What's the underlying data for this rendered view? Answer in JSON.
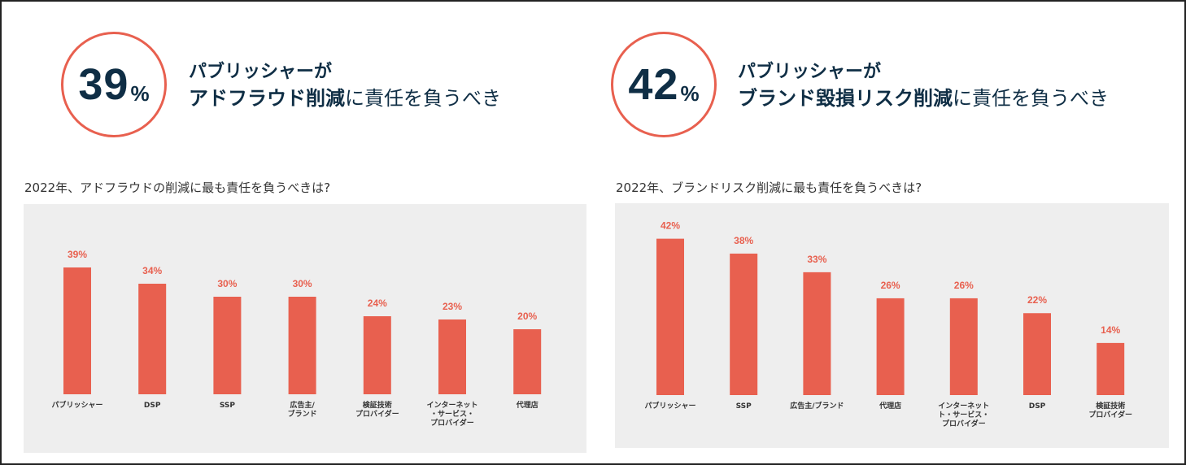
{
  "left": {
    "stat_number": "39",
    "stat_unit": "%",
    "headline_line1": "パブリッシャーが",
    "headline_bold": "アドフラウド削減",
    "headline_rest": "に責任を負うべき"
  },
  "right": {
    "stat_number": "42",
    "stat_unit": "%",
    "headline_line1": "パブリッシャーが",
    "headline_bold": "ブランド毀損リスク削減",
    "headline_rest": "に責任を負うべき"
  },
  "colors": {
    "accent": "#e8604f",
    "navy": "#0f2e45",
    "panel_bg": "#eeeeee"
  },
  "chart_data": [
    {
      "type": "bar",
      "title": "2022年、アドフラウドの削減に最も責任を負うべきは?",
      "categories": [
        "パブリッシャー",
        "DSP",
        "SSP",
        "広告主/\nブランド",
        "検証技術\nプロバイダー",
        "インターネット\n・サービス・\nプロバイダー",
        "代理店"
      ],
      "values": [
        39,
        34,
        30,
        30,
        24,
        23,
        20
      ],
      "value_labels": [
        "39%",
        "34%",
        "30%",
        "30%",
        "24%",
        "23%",
        "20%"
      ],
      "ylim": [
        0,
        45
      ],
      "xlabel": "",
      "ylabel": ""
    },
    {
      "type": "bar",
      "title": "2022年、ブランドリスク削減に最も責任を負うべきは?",
      "categories": [
        "パブリッシャー",
        "SSP",
        "広告主/ブランド",
        "代理店",
        "インターネット\nト・サービス・\nプロバイダー",
        "DSP",
        "検証技術\nプロバイダー"
      ],
      "values": [
        42,
        38,
        33,
        26,
        26,
        22,
        14
      ],
      "value_labels": [
        "42%",
        "38%",
        "33%",
        "26%",
        "26%",
        "22%",
        "14%"
      ],
      "ylim": [
        0,
        45
      ],
      "xlabel": "",
      "ylabel": ""
    }
  ]
}
